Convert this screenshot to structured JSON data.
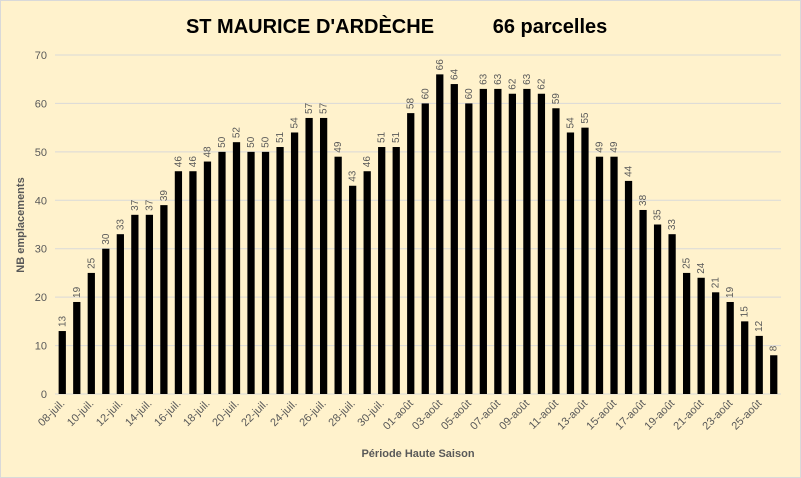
{
  "chart_data": {
    "type": "bar",
    "title": "ST MAURICE D'ARDÈCHE",
    "subtitle": "66 parcelles",
    "x_label": "Période Haute Saison",
    "y_label": "NB emplacements",
    "categories": [
      "08-juil.",
      null,
      "10-juil.",
      null,
      "12-juil.",
      null,
      "14-juil.",
      null,
      "16-juil.",
      null,
      "18-juil.",
      null,
      "20-juil.",
      null,
      "22-juil.",
      null,
      "24-juil.",
      null,
      "26-juil.",
      null,
      "28-juil.",
      null,
      "30-juil.",
      null,
      "01-août",
      null,
      "03-août",
      null,
      "05-août",
      null,
      "07-août",
      null,
      "09-août",
      null,
      "11-août",
      null,
      "13-août",
      null,
      "15-août",
      null,
      "17-août",
      null,
      "19-août",
      null,
      "21-août",
      null,
      "23-août",
      null,
      "25-août",
      null
    ],
    "values": [
      13,
      19,
      25,
      30,
      33,
      37,
      37,
      39,
      46,
      46,
      48,
      50,
      52,
      50,
      50,
      51,
      54,
      57,
      57,
      49,
      43,
      46,
      51,
      51,
      58,
      60,
      66,
      64,
      60,
      63,
      63,
      62,
      63,
      62,
      59,
      54,
      55,
      49,
      49,
      44,
      38,
      35,
      33,
      25,
      24,
      21,
      19,
      15,
      12,
      8
    ],
    "color": "#000000",
    "ylim": [
      0,
      70
    ],
    "yticks": [
      0,
      10,
      20,
      30,
      40,
      50,
      60,
      70
    ],
    "grid": true
  }
}
